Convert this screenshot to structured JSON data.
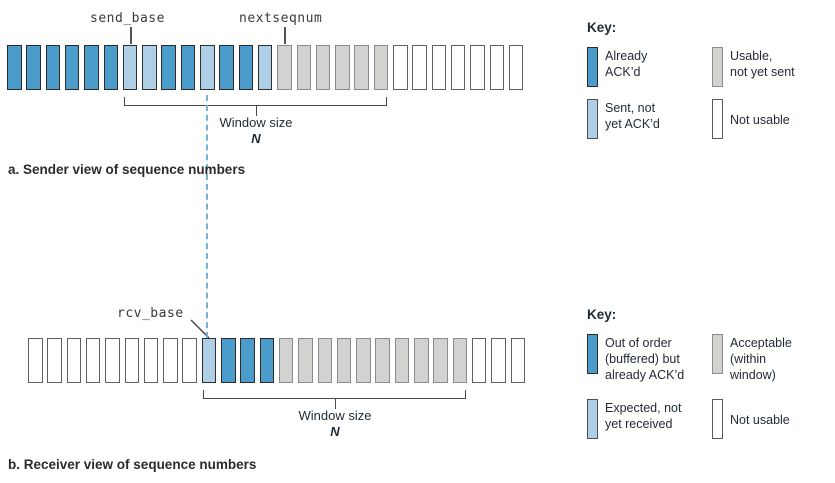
{
  "colors": {
    "dark": "#4b9ccb",
    "light": "#aecfe5",
    "gray": "#d2d2d0",
    "dashed_line": "#74b2d8"
  },
  "sender": {
    "send_base_label": "send_base",
    "nextseqnum_label": "nextseqnum",
    "window_label": "Window size",
    "window_n": "N",
    "caption": "a. Sender view of sequence numbers",
    "bars": [
      "dark",
      "dark",
      "dark",
      "dark",
      "dark",
      "dark",
      "light",
      "light",
      "dark",
      "dark",
      "light",
      "dark",
      "dark",
      "light",
      "gray",
      "gray",
      "gray",
      "gray",
      "gray",
      "gray",
      "white",
      "white",
      "white",
      "white",
      "white",
      "white",
      "white"
    ]
  },
  "receiver": {
    "rcv_base_label": "rcv_base",
    "window_label": "Window size",
    "window_n": "N",
    "caption": "b. Receiver view of sequence numbers",
    "bars": [
      "white",
      "white",
      "white",
      "white",
      "white",
      "white",
      "white",
      "white",
      "white",
      "light",
      "dark",
      "dark",
      "dark",
      "gray",
      "gray",
      "gray",
      "gray",
      "gray",
      "gray",
      "gray",
      "gray",
      "gray",
      "gray",
      "white",
      "white",
      "white"
    ]
  },
  "key_sender": {
    "title": "Key:",
    "items": [
      {
        "swatch": "dark",
        "label": "Already\nACK’d"
      },
      {
        "swatch": "gray",
        "label": "Usable,\nnot yet sent"
      },
      {
        "swatch": "light",
        "label": "Sent, not\nyet ACK’d"
      },
      {
        "swatch": "white",
        "label": "Not usable"
      }
    ]
  },
  "key_receiver": {
    "title": "Key:",
    "items": [
      {
        "swatch": "dark",
        "label": "Out of order\n(buffered) but\nalready ACK’d"
      },
      {
        "swatch": "gray",
        "label": "Acceptable\n(within\nwindow)"
      },
      {
        "swatch": "light",
        "label": "Expected, not\nyet received"
      },
      {
        "swatch": "white",
        "label": "Not usable"
      }
    ]
  }
}
